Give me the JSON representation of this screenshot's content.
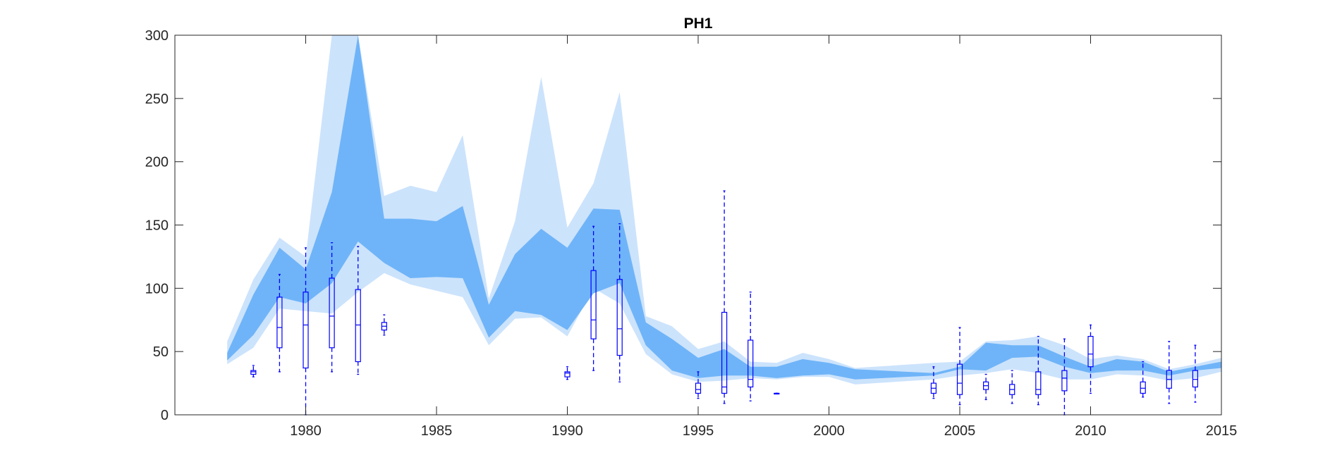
{
  "chart_data": {
    "type": "area",
    "title": "PH1",
    "xlabel": "",
    "ylabel": "",
    "xlim": [
      1975,
      2015
    ],
    "ylim": [
      0,
      300
    ],
    "x_ticks": [
      1980,
      1985,
      1990,
      1995,
      2000,
      2005,
      2010,
      2015
    ],
    "y_ticks": [
      0,
      50,
      100,
      150,
      200,
      250,
      300
    ],
    "grid": false,
    "legend": "none",
    "colors": {
      "outer_band": "#cce3fc",
      "inner_band": "#6fb4f8",
      "box": "#0000ff",
      "axis": "#262626"
    },
    "series": [
      {
        "x": [
          1977,
          1978,
          1979,
          1980,
          1981,
          1982,
          1983,
          1984,
          1985,
          1986,
          1987,
          1988,
          1989,
          1990,
          1991,
          1992,
          1993,
          1994,
          1995,
          1996,
          1997,
          1998,
          1999,
          2000,
          2001,
          2004,
          2005,
          2006,
          2007,
          2008,
          2009,
          2010,
          2011,
          2012,
          2013,
          2014,
          2015
        ],
        "outer_lower": [
          40,
          53,
          84,
          82,
          80,
          97,
          112,
          103,
          98,
          93,
          55,
          76,
          77,
          62,
          100,
          88,
          48,
          32,
          26,
          27,
          29,
          28,
          30,
          30,
          24,
          28,
          31,
          33,
          36,
          33,
          28,
          28,
          32,
          31,
          27,
          29,
          34
        ],
        "outer_upper": [
          58,
          107,
          140,
          125,
          300,
          300,
          173,
          181,
          176,
          221,
          92,
          153,
          267,
          148,
          183,
          255,
          78,
          70,
          52,
          58,
          42,
          41,
          49,
          44,
          37,
          41,
          42,
          58,
          59,
          62,
          55,
          44,
          47,
          44,
          36,
          40,
          45
        ],
        "inner_lower": [
          43,
          63,
          93,
          88,
          104,
          137,
          120,
          108,
          109,
          108,
          61,
          82,
          79,
          67,
          96,
          104,
          55,
          35,
          29,
          31,
          31,
          29,
          31,
          32,
          28,
          31,
          36,
          35,
          45,
          46,
          38,
          33,
          35,
          35,
          31,
          35,
          37
        ],
        "inner_upper": [
          49,
          95,
          132,
          115,
          176,
          300,
          155,
          155,
          153,
          165,
          87,
          127,
          147,
          132,
          163,
          162,
          73,
          60,
          45,
          52,
          38,
          38,
          44,
          41,
          36,
          33,
          38,
          57,
          55,
          55,
          46,
          38,
          44,
          42,
          34,
          38,
          42
        ]
      }
    ],
    "boxplots": [
      {
        "x": 1978,
        "min": 30,
        "q1": 32,
        "median": 34,
        "q3": 35,
        "max": 39
      },
      {
        "x": 1979,
        "min": 34,
        "q1": 53,
        "median": 69,
        "q3": 93,
        "max": 111
      },
      {
        "x": 1980,
        "min": 0,
        "q1": 37,
        "median": 71,
        "q3": 97,
        "max": 132
      },
      {
        "x": 1981,
        "min": 34,
        "q1": 53,
        "median": 78,
        "q3": 108,
        "max": 136
      },
      {
        "x": 1982,
        "min": 32,
        "q1": 42,
        "median": 71,
        "q3": 99,
        "max": 133
      },
      {
        "x": 1983,
        "min": 63,
        "q1": 67,
        "median": 70,
        "q3": 73,
        "max": 79
      },
      {
        "x": 1990,
        "min": 28,
        "q1": 30,
        "median": 33,
        "q3": 34,
        "max": 38
      },
      {
        "x": 1991,
        "min": 35,
        "q1": 60,
        "median": 75,
        "q3": 114,
        "max": 149
      },
      {
        "x": 1992,
        "min": 26,
        "q1": 47,
        "median": 68,
        "q3": 107,
        "max": 151
      },
      {
        "x": 1995,
        "min": 13,
        "q1": 17,
        "median": 20,
        "q3": 25,
        "max": 34
      },
      {
        "x": 1996,
        "min": 9,
        "q1": 17,
        "median": 22,
        "q3": 81,
        "max": 177
      },
      {
        "x": 1997,
        "min": 11,
        "q1": 22,
        "median": 28,
        "q3": 59,
        "max": 97
      },
      {
        "x": 1998,
        "min": 17,
        "q1": 17,
        "median": 17,
        "q3": 17,
        "max": 17
      },
      {
        "x": 2004,
        "min": 13,
        "q1": 17,
        "median": 21,
        "q3": 25,
        "max": 38
      },
      {
        "x": 2005,
        "min": 8,
        "q1": 16,
        "median": 25,
        "q3": 40,
        "max": 69
      },
      {
        "x": 2006,
        "min": 12,
        "q1": 20,
        "median": 23,
        "q3": 26,
        "max": 32
      },
      {
        "x": 2007,
        "min": 9,
        "q1": 16,
        "median": 20,
        "q3": 24,
        "max": 35
      },
      {
        "x": 2008,
        "min": 8,
        "q1": 16,
        "median": 20,
        "q3": 34,
        "max": 62
      },
      {
        "x": 2009,
        "min": 0,
        "q1": 19,
        "median": 29,
        "q3": 35,
        "max": 60
      },
      {
        "x": 2010,
        "min": 17,
        "q1": 38,
        "median": 48,
        "q3": 62,
        "max": 71
      },
      {
        "x": 2012,
        "min": 14,
        "q1": 17,
        "median": 21,
        "q3": 26,
        "max": 42
      },
      {
        "x": 2013,
        "min": 9,
        "q1": 21,
        "median": 28,
        "q3": 35,
        "max": 58
      },
      {
        "x": 2014,
        "min": 10,
        "q1": 22,
        "median": 28,
        "q3": 35,
        "max": 55
      }
    ]
  }
}
